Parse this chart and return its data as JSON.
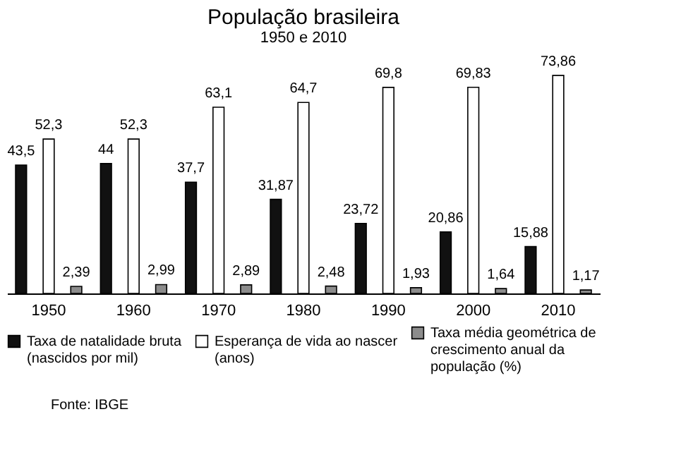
{
  "chart_data": {
    "type": "bar",
    "title": "População brasileira",
    "subtitle": "1950 e 2010",
    "categories": [
      "1950",
      "1960",
      "1970",
      "1980",
      "1990",
      "2000",
      "2010"
    ],
    "series": [
      {
        "name": "Taxa de natalidade bruta (nascidos por mil)",
        "color": "#111111",
        "values": [
          43.5,
          44,
          37.7,
          31.87,
          23.72,
          20.86,
          15.88
        ],
        "value_labels": [
          "43,5",
          "44",
          "37,7",
          "31,87",
          "23,72",
          "20,86",
          "15,88"
        ]
      },
      {
        "name": "Esperança de vida ao nascer (anos)",
        "color": "#ffffff",
        "values": [
          52.3,
          52.3,
          63.1,
          64.7,
          69.8,
          69.83,
          73.86
        ],
        "value_labels": [
          "52,3",
          "52,3",
          "63,1",
          "64,7",
          "69,8",
          "69,83",
          "73,86"
        ]
      },
      {
        "name": "Taxa média geométrica de crescimento anual da população (%)",
        "color": "#8c8c8c",
        "values": [
          2.39,
          2.99,
          2.89,
          2.48,
          1.93,
          1.64,
          1.17
        ],
        "value_labels": [
          "2,39",
          "2,99",
          "2,89",
          "2,48",
          "1,93",
          "1,64",
          "1,17"
        ]
      }
    ],
    "legend": "bottom",
    "grid": false,
    "annotations": [
      "Fonte: IBGE"
    ]
  }
}
